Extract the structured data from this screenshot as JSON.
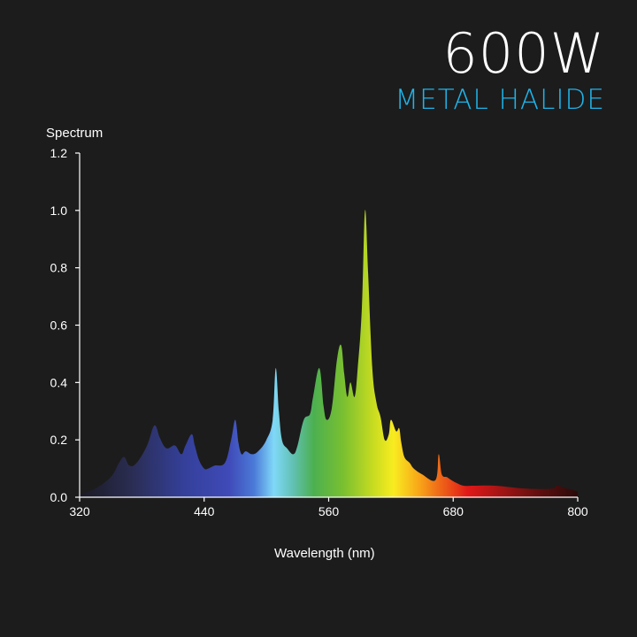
{
  "header": {
    "title": "600W",
    "subtitle": "METAL HALIDE",
    "subtitle_color": "#1fb4ea"
  },
  "chart_data": {
    "type": "area",
    "title": "600W",
    "subtitle": "METAL HALIDE",
    "xlabel": "Wavelength (nm)",
    "ylabel": "Spectrum",
    "xlim": [
      320,
      800
    ],
    "ylim": [
      0,
      1.2
    ],
    "xticks": [
      320,
      440,
      560,
      680,
      800
    ],
    "yticks": [
      0.0,
      0.2,
      0.4,
      0.6,
      0.8,
      1.0,
      1.2
    ],
    "ytick_labels": [
      "0.0",
      "0.2",
      "0.4",
      "0.6",
      "0.8",
      "1.0",
      "1.2"
    ],
    "grid": false,
    "fill": "visible-spectrum gradient",
    "x": [
      320,
      335,
      350,
      358,
      363,
      368,
      375,
      385,
      392,
      397,
      401,
      405,
      412,
      418,
      422,
      428,
      431,
      435,
      440,
      444,
      450,
      460,
      466,
      470,
      473,
      476,
      480,
      486,
      492,
      500,
      506,
      509,
      512,
      515,
      520,
      526,
      530,
      536,
      542,
      545,
      551,
      555,
      558,
      563,
      568,
      572,
      575,
      578,
      581,
      585,
      588,
      592,
      595,
      598,
      602,
      606,
      610,
      614,
      618,
      620,
      625,
      628,
      630,
      633,
      638,
      642,
      650,
      663,
      666,
      669,
      674,
      678,
      683,
      690,
      700,
      720,
      750,
      775,
      780,
      790,
      800
    ],
    "y": [
      0.01,
      0.03,
      0.07,
      0.12,
      0.14,
      0.11,
      0.12,
      0.18,
      0.25,
      0.21,
      0.18,
      0.17,
      0.18,
      0.15,
      0.18,
      0.22,
      0.18,
      0.13,
      0.1,
      0.1,
      0.11,
      0.12,
      0.2,
      0.27,
      0.19,
      0.15,
      0.16,
      0.15,
      0.16,
      0.2,
      0.27,
      0.45,
      0.3,
      0.2,
      0.17,
      0.15,
      0.18,
      0.27,
      0.29,
      0.35,
      0.45,
      0.32,
      0.27,
      0.31,
      0.48,
      0.53,
      0.43,
      0.35,
      0.4,
      0.35,
      0.45,
      0.66,
      1.0,
      0.78,
      0.45,
      0.33,
      0.28,
      0.2,
      0.22,
      0.27,
      0.23,
      0.24,
      0.19,
      0.14,
      0.12,
      0.1,
      0.08,
      0.06,
      0.15,
      0.08,
      0.07,
      0.06,
      0.05,
      0.04,
      0.04,
      0.04,
      0.03,
      0.03,
      0.04,
      0.03,
      0.02
    ]
  }
}
